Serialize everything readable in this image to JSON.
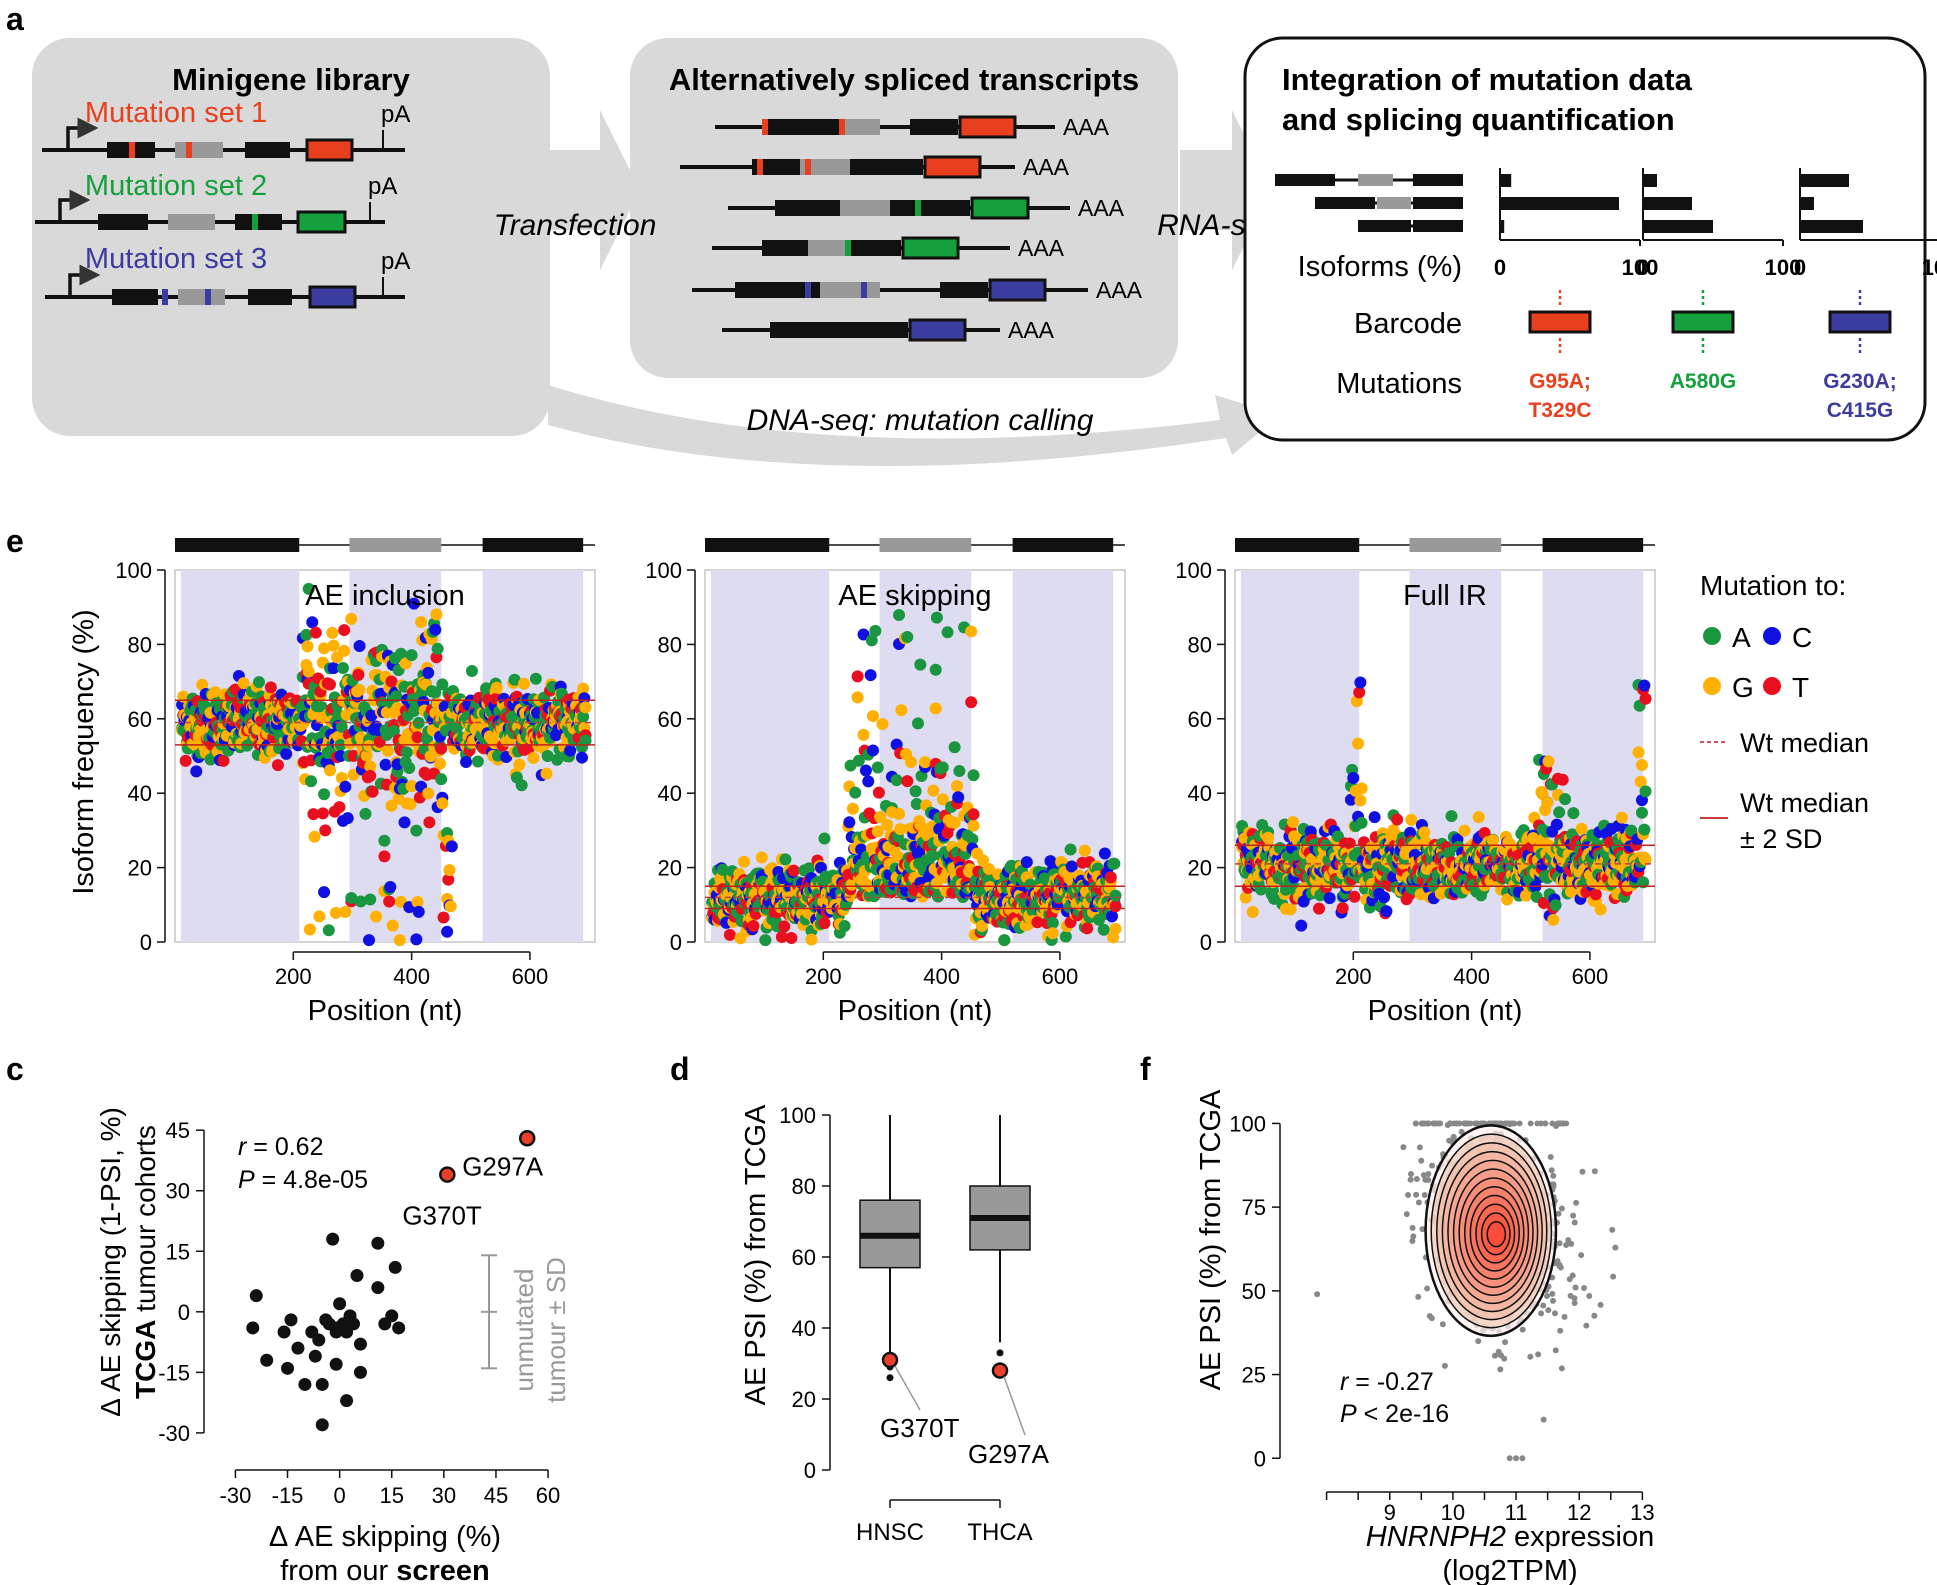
{
  "panel_a": {
    "letter": "a",
    "minigene": {
      "title": "Minigene library",
      "sets": [
        {
          "label": "Mutation set 1",
          "color": "#e8401e"
        },
        {
          "label": "Mutation set 2",
          "color": "#14a03c"
        },
        {
          "label": "Mutation set 3",
          "color": "#3c3ca0"
        }
      ],
      "pA": "pA"
    },
    "transfection": "Transfection",
    "transcripts": {
      "title": "Alternatively spliced transcripts",
      "polyA": "AAA"
    },
    "rnaseq": "RNA-seq",
    "dnaseq": "DNA-seq: mutation calling",
    "integration": {
      "title_line1": "Integration of mutation data",
      "title_line2": "and splicing quantification",
      "isoforms_label": "Isoforms (%)",
      "barcode_label": "Barcode",
      "mutations_label": "Mutations",
      "axis_min": "0",
      "axis_max": "100",
      "barcodes": [
        {
          "isoforms": [
            8,
            85,
            3
          ],
          "mut_line1": "G95A;",
          "mut_line2": "T329C",
          "color": "#e8401e"
        },
        {
          "isoforms": [
            10,
            35,
            50
          ],
          "mut_line1": "A580G",
          "mut_line2": "",
          "color": "#14a03c"
        },
        {
          "isoforms": [
            35,
            10,
            45
          ],
          "mut_line1": "G230A;",
          "mut_line2": "C415G",
          "color": "#3c3ca0"
        }
      ]
    }
  },
  "panel_e": {
    "letter": "e",
    "ylabel": "Isoform frequency (%)",
    "xlabel": "Position (nt)",
    "legend": {
      "title": "Mutation to:",
      "A": "A",
      "C": "C",
      "G": "G",
      "T": "T",
      "wt_median": "Wt median",
      "wt_sd_line1": "Wt median",
      "wt_sd_line2": "± 2 SD"
    },
    "colors": {
      "A": "#1a9641",
      "C": "#1010e0",
      "G": "#ffb000",
      "T": "#e8101e"
    }
  },
  "panel_c": {
    "letter": "c",
    "r_label": "r",
    "r_value": " = 0.62",
    "p_label": "P",
    "p_value": " = 4.8e-05",
    "xlabel_line1": "Δ AE skipping (%)",
    "xlabel_line2a": "from our ",
    "xlabel_line2b": "screen",
    "ylabel_line1": "Δ AE skipping (1-PSI, %)",
    "ylabel_line2a": "TCGA",
    "ylabel_line2b": " tumour cohorts",
    "sd_line1": "unmutated",
    "sd_line2": "tumour ± SD",
    "highlight_labels": [
      "G370T",
      "G297A"
    ]
  },
  "panel_d": {
    "letter": "d",
    "ylabel": "AE PSI (%) from TCGA",
    "point_labels": [
      "G370T",
      "G297A"
    ]
  },
  "panel_f": {
    "letter": "f",
    "ylabel": "AE PSI (%) from TCGA",
    "xlabel_line1_italic": "HNRNPH2",
    "xlabel_line1_rest": " expression",
    "xlabel_line2": "(log2TPM)",
    "r_label": "r",
    "r_value": " = -0.27",
    "p_label": "P",
    "p_value": " < 2e-16"
  },
  "chart_data": [
    {
      "type": "scatter",
      "title": "AE inclusion",
      "xlabel": "Position (nt)",
      "ylabel": "Isoform frequency (%)",
      "xlim": [
        0,
        710
      ],
      "ylim": [
        0,
        100
      ],
      "xticks": [
        200,
        400,
        600
      ],
      "yticks": [
        0,
        20,
        40,
        60,
        80,
        100
      ],
      "wt_median": 59,
      "wt_sd_band": [
        53,
        65
      ],
      "exon_regions": [
        [
          10,
          210
        ],
        [
          295,
          450
        ],
        [
          520,
          690
        ]
      ]
    },
    {
      "type": "scatter",
      "title": "AE skipping",
      "xlabel": "Position (nt)",
      "ylabel": "Isoform frequency (%)",
      "xlim": [
        0,
        710
      ],
      "ylim": [
        0,
        100
      ],
      "xticks": [
        200,
        400,
        600
      ],
      "yticks": [
        0,
        20,
        40,
        60,
        80,
        100
      ],
      "wt_median": 12,
      "wt_sd_band": [
        9,
        15
      ],
      "exon_regions": [
        [
          10,
          210
        ],
        [
          295,
          450
        ],
        [
          520,
          690
        ]
      ]
    },
    {
      "type": "scatter",
      "title": "Full IR",
      "xlabel": "Position (nt)",
      "ylabel": "Isoform frequency (%)",
      "xlim": [
        0,
        710
      ],
      "ylim": [
        0,
        100
      ],
      "xticks": [
        200,
        400,
        600
      ],
      "yticks": [
        0,
        20,
        40,
        60,
        80,
        100
      ],
      "wt_median": 21,
      "wt_sd_band": [
        15,
        26
      ],
      "exon_regions": [
        [
          10,
          210
        ],
        [
          295,
          450
        ],
        [
          520,
          690
        ]
      ]
    },
    {
      "type": "scatter",
      "xlabel": "Δ AE skipping (%) from our screen",
      "ylabel": "Δ AE skipping (1-PSI, %) TCGA tumour cohorts",
      "xlim": [
        -33,
        62
      ],
      "ylim": [
        -33,
        50
      ],
      "xticks": [
        -30,
        -15,
        0,
        15,
        30,
        45,
        60
      ],
      "yticks": [
        -30,
        -15,
        0,
        15,
        30,
        45
      ],
      "points": [
        [
          -24,
          4
        ],
        [
          -25,
          -4
        ],
        [
          -21,
          -12
        ],
        [
          -16,
          -5
        ],
        [
          -15,
          -14
        ],
        [
          -14,
          -2
        ],
        [
          -12,
          -9
        ],
        [
          -10,
          -18
        ],
        [
          -8,
          -5
        ],
        [
          -7,
          -11
        ],
        [
          -6,
          -7
        ],
        [
          -5,
          -18
        ],
        [
          -5,
          -28
        ],
        [
          -4,
          -2
        ],
        [
          -3,
          -3
        ],
        [
          -2,
          18
        ],
        [
          -1,
          -5
        ],
        [
          -1,
          -13
        ],
        [
          -1,
          -4
        ],
        [
          0,
          2
        ],
        [
          0,
          -4
        ],
        [
          1,
          -3
        ],
        [
          2,
          -5
        ],
        [
          2,
          -22
        ],
        [
          3,
          -2
        ],
        [
          3,
          -1
        ],
        [
          4,
          -3
        ],
        [
          5,
          9
        ],
        [
          6,
          -15
        ],
        [
          6,
          -8
        ],
        [
          11,
          6
        ],
        [
          11,
          17
        ],
        [
          13,
          -3
        ],
        [
          15,
          -1
        ],
        [
          16,
          11
        ],
        [
          17,
          -4
        ]
      ],
      "highlighted": [
        {
          "label": "G370T",
          "x": 31,
          "y": 34
        },
        {
          "label": "G297A",
          "x": 54,
          "y": 43
        }
      ],
      "sd_bar": {
        "x": 43,
        "mean": 0,
        "low": -14,
        "high": 14
      },
      "r": 0.62,
      "P": "4.8e-05"
    },
    {
      "type": "box",
      "ylabel": "AE PSI (%) from TCGA",
      "categories": [
        "HNSC",
        "THCA"
      ],
      "ylim": [
        0,
        100
      ],
      "yticks": [
        0,
        20,
        40,
        60,
        80,
        100
      ],
      "boxes": [
        {
          "category": "HNSC",
          "whisker_low": 33,
          "q1": 57,
          "median": 66,
          "q3": 76,
          "whisker_high": 100,
          "outliers": [
            29,
            26
          ]
        },
        {
          "category": "THCA",
          "whisker_low": 36,
          "q1": 62,
          "median": 71,
          "q3": 80,
          "whisker_high": 100,
          "outliers": [
            33
          ]
        }
      ],
      "highlighted": [
        {
          "label": "G370T",
          "category": "HNSC",
          "value": 31
        },
        {
          "label": "G297A",
          "category": "THCA",
          "value": 28
        }
      ]
    },
    {
      "type": "scatter",
      "ylabel": "AE PSI (%) from TCGA",
      "xlabel": "HNRNPH2 expression (log2TPM)",
      "xlim": [
        7.5,
        13.2
      ],
      "ylim": [
        -5,
        107
      ],
      "xticks": [
        9,
        10,
        11,
        12,
        13
      ],
      "yticks": [
        0,
        25,
        50,
        75,
        100
      ],
      "density_peak": {
        "x": 10.6,
        "y": 68
      },
      "r": -0.27,
      "P": "< 2e-16"
    }
  ]
}
